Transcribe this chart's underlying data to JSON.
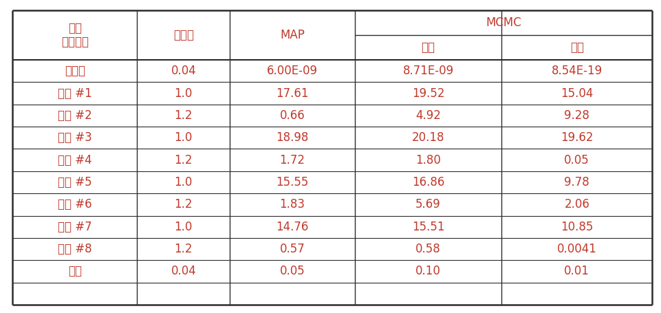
{
  "col0_label": "미지\n파라미터",
  "col1_label": "초기값",
  "col2_label": "MAP",
  "mcmc_label": "MCMC",
  "col3_label": "평균",
  "col4_label": "분산",
  "rows": [
    [
      "스케일",
      "0.04",
      "6.00E-09",
      "8.71E-09",
      "8.54E-19"
    ],
    [
      "길이 #1",
      "1.0",
      "17.61",
      "19.52",
      "15.04"
    ],
    [
      "길이 #2",
      "1.2",
      "0.66",
      "4.92",
      "9.28"
    ],
    [
      "길이 #3",
      "1.0",
      "18.98",
      "20.18",
      "19.62"
    ],
    [
      "길이 #4",
      "1.2",
      "1.72",
      "1.80",
      "0.05"
    ],
    [
      "길이 #5",
      "1.0",
      "15.55",
      "16.86",
      "9.78"
    ],
    [
      "길이 #6",
      "1.2",
      "1.83",
      "5.69",
      "2.06"
    ],
    [
      "길이 #7",
      "1.0",
      "14.76",
      "15.51",
      "10.85"
    ],
    [
      "길이 #8",
      "1.2",
      "0.57",
      "0.58",
      "0.0041"
    ],
    [
      "오차",
      "0.04",
      "0.05",
      "0.10",
      "0.01"
    ]
  ],
  "text_color": "#C0392B",
  "border_color": "#2C2C2C",
  "bg_color": "#FFFFFF",
  "font_size": 12,
  "header_font_size": 12
}
